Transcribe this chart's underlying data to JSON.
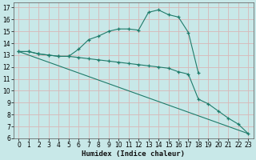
{
  "xlabel": "Humidex (Indice chaleur)",
  "bg_color": "#c8e8e8",
  "grid_color": "#d8b8b8",
  "line_color": "#1e7b6a",
  "xlim": [
    -0.5,
    23.5
  ],
  "ylim": [
    6,
    17.4
  ],
  "xticks": [
    0,
    1,
    2,
    3,
    4,
    5,
    6,
    7,
    8,
    9,
    10,
    11,
    12,
    13,
    14,
    15,
    16,
    17,
    18,
    19,
    20,
    21,
    22,
    23
  ],
  "yticks": [
    6,
    7,
    8,
    9,
    10,
    11,
    12,
    13,
    14,
    15,
    16,
    17
  ],
  "curves": [
    {
      "x": [
        0,
        1,
        2,
        3,
        4,
        5,
        6,
        7,
        8,
        9,
        10,
        11,
        12,
        13,
        14,
        15,
        16,
        17,
        18
      ],
      "y": [
        13.3,
        13.3,
        13.1,
        13.0,
        12.9,
        12.9,
        13.5,
        14.3,
        14.6,
        15.0,
        15.2,
        15.2,
        15.1,
        16.6,
        16.8,
        16.4,
        16.2,
        14.9,
        11.5
      ],
      "marker": true
    },
    {
      "x": [
        0,
        1,
        2,
        3,
        4,
        5,
        6,
        7,
        8,
        9,
        10,
        11,
        12,
        13,
        14,
        15,
        16,
        17,
        18,
        19,
        20,
        21,
        22,
        23
      ],
      "y": [
        13.3,
        13.3,
        13.1,
        13.0,
        12.9,
        12.9,
        12.8,
        12.7,
        12.6,
        12.5,
        12.4,
        12.3,
        12.2,
        12.1,
        12.0,
        11.9,
        11.6,
        11.4,
        9.3,
        8.9,
        8.3,
        7.7,
        7.2,
        6.4
      ],
      "marker": true
    },
    {
      "x": [
        0,
        23
      ],
      "y": [
        13.3,
        6.4
      ],
      "marker": false
    }
  ]
}
